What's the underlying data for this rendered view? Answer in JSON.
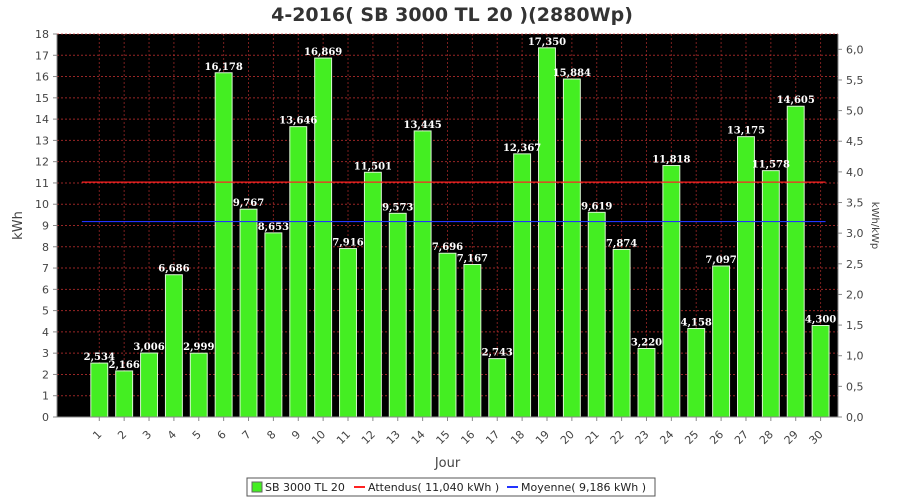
{
  "chart_data": {
    "type": "bar",
    "title": "4-2016( SB 3000 TL 20 )(2880Wp)",
    "xlabel": "Jour",
    "ylabel": "kWh",
    "y2label": "kWh/kWp",
    "ylim": [
      0,
      18
    ],
    "y2lim": [
      0,
      6.25
    ],
    "categories": [
      "1",
      "2",
      "3",
      "4",
      "5",
      "6",
      "7",
      "8",
      "9",
      "10",
      "11",
      "12",
      "13",
      "14",
      "15",
      "16",
      "17",
      "18",
      "19",
      "20",
      "21",
      "22",
      "23",
      "24",
      "25",
      "26",
      "27",
      "28",
      "29",
      "30"
    ],
    "series": [
      {
        "name": "SB 3000 TL 20",
        "values": [
          2.534,
          2.166,
          3.006,
          6.686,
          2.999,
          16.178,
          9.767,
          8.653,
          13.646,
          16.869,
          7.916,
          11.501,
          9.573,
          13.445,
          7.696,
          7.167,
          2.743,
          12.367,
          17.35,
          15.884,
          9.619,
          7.874,
          3.22,
          11.818,
          4.158,
          7.097,
          13.175,
          11.578,
          14.605,
          4.3
        ],
        "labels": [
          "2,534",
          "2,166",
          "3,006",
          "6,686",
          "2,999",
          "16,178",
          "9,767",
          "8,653",
          "13,646",
          "16,869",
          "7,916",
          "11,501",
          "9,573",
          "13,445",
          "7,696",
          "7,167",
          "2,743",
          "12,367",
          "17,350",
          "15,884",
          "9,619",
          "7,874",
          "3,220",
          "11,818",
          "4,158",
          "7,097",
          "13,175",
          "11,578",
          "14,605",
          "4,300"
        ],
        "color": "#44ee22"
      }
    ],
    "reference_lines": [
      {
        "name": "Attendus( 11,040 kWh )",
        "value": 11.04,
        "color": "#ff2222"
      },
      {
        "name": "Moyenne( 9,186 kWh )",
        "value": 9.186,
        "color": "#2233ff"
      }
    ],
    "y_ticks": [
      "0",
      "1",
      "2",
      "3",
      "4",
      "5",
      "6",
      "7",
      "8",
      "9",
      "10",
      "11",
      "12",
      "13",
      "14",
      "15",
      "16",
      "17",
      "18"
    ],
    "y2_ticks": [
      "0,0",
      "0,5",
      "1,0",
      "1,5",
      "2,0",
      "2,5",
      "3,0",
      "3,5",
      "4,0",
      "4,5",
      "5,0",
      "5,5",
      "6,0"
    ],
    "grid": true,
    "legend": "bottom",
    "background": "#000000",
    "grid_color": "#cc3333"
  }
}
